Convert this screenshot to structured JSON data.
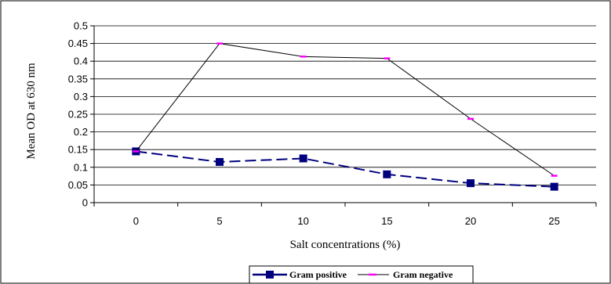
{
  "chart_data": {
    "type": "line",
    "title": "",
    "xlabel": "Salt concentrations (%)",
    "ylabel": "Mean OD at 630 nm",
    "categories": [
      "0",
      "5",
      "10",
      "15",
      "20",
      "25"
    ],
    "y_ticks": [
      "0",
      "0.05",
      "0.1",
      "0.15",
      "0.2",
      "0.25",
      "0.3",
      "0.35",
      "0.4",
      "0.45",
      "0.5"
    ],
    "ylim": [
      0,
      0.5
    ],
    "grid": true,
    "legend_position": "bottom",
    "series": [
      {
        "name": "Gram positive",
        "values": [
          0.145,
          0.115,
          0.125,
          0.08,
          0.055,
          0.045
        ],
        "color": "#00007f",
        "line_style": "dashed",
        "marker": "square"
      },
      {
        "name": "Gram negative",
        "values": [
          0.145,
          0.45,
          0.413,
          0.408,
          0.237,
          0.076
        ],
        "color": "#000000",
        "marker_color": "#ff00ff",
        "line_style": "solid",
        "marker": "dash"
      }
    ]
  }
}
